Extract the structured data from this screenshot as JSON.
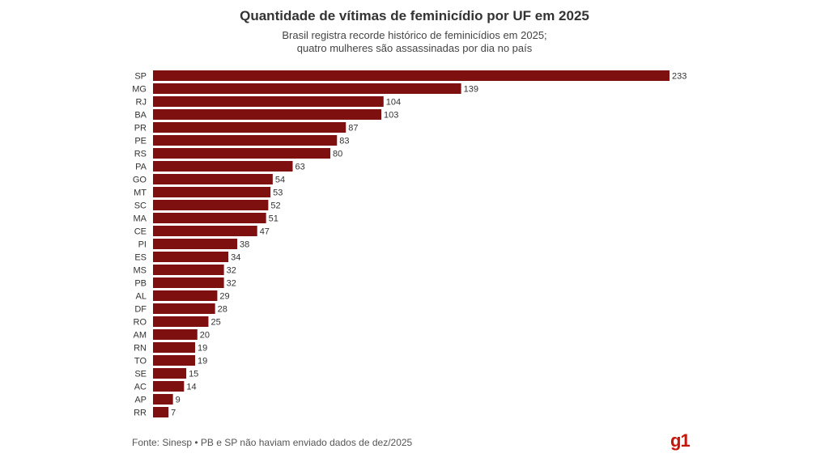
{
  "header": {
    "title": "Quantidade de vítimas de feminicídio por UF em 2025",
    "subtitle_line1": "Brasil registra recorde histórico de feminicídios em 2025;",
    "subtitle_line2": "quatro mulheres são assassinadas por dia no país"
  },
  "chart_data": {
    "type": "bar",
    "orientation": "horizontal",
    "title": "Quantidade de vítimas de feminicídio por UF em 2025",
    "subtitle": "Brasil registra recorde histórico de feminicídios em 2025; quatro mulheres são assassinadas por dia no país",
    "categories": [
      "SP",
      "MG",
      "RJ",
      "BA",
      "PR",
      "PE",
      "RS",
      "PA",
      "GO",
      "MT",
      "SC",
      "MA",
      "CE",
      "PI",
      "ES",
      "MS",
      "PB",
      "AL",
      "DF",
      "RO",
      "AM",
      "RN",
      "TO",
      "SE",
      "AC",
      "AP",
      "RR"
    ],
    "values": [
      233,
      139,
      104,
      103,
      87,
      83,
      80,
      63,
      54,
      53,
      52,
      51,
      47,
      38,
      34,
      32,
      32,
      29,
      28,
      25,
      20,
      19,
      19,
      15,
      14,
      9,
      7
    ],
    "bar_color": "#7f1010",
    "xlim": [
      0,
      233
    ],
    "grid": false,
    "data_labels": true
  },
  "footer": {
    "source": "Fonte: Sinesp • PB e SP não haviam enviado dados de dez/2025",
    "logo": "g1"
  }
}
